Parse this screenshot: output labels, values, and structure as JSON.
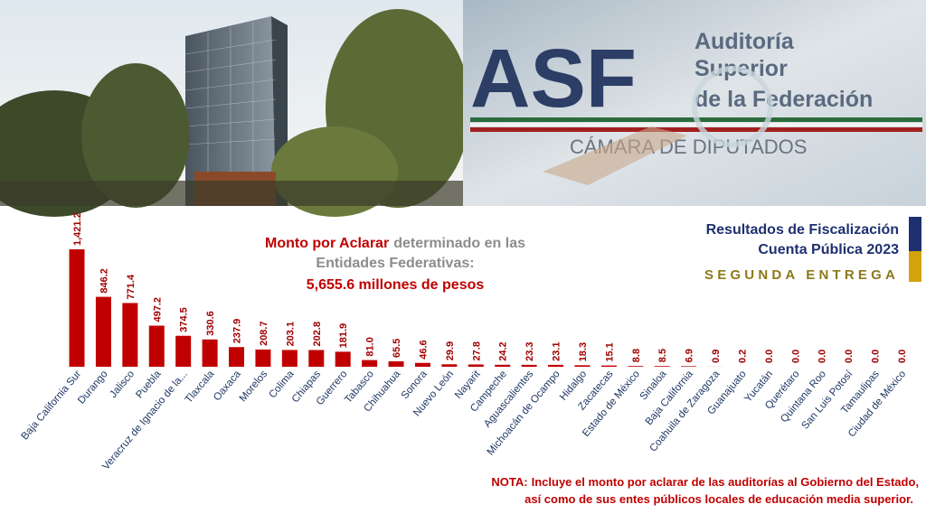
{
  "banner": {
    "logo": "ASF",
    "org_line1": "Auditoría",
    "org_line2": "Superior",
    "org_line3": "de la Federación",
    "chamber": "CÁMARA DE DIPUTADOS"
  },
  "chart_data": {
    "type": "bar",
    "title_part1": "Monto por Aclarar",
    "title_part2": "determinado en las",
    "title_line2": "Entidades Federativas:",
    "total": "5,655.6 millones de pesos",
    "categories": [
      "Baja California Sur",
      "Durango",
      "Jalisco",
      "Puebla",
      "Veracruz de Ignacio de la...",
      "Tlaxcala",
      "Oaxaca",
      "Morelos",
      "Colima",
      "Chiapas",
      "Guerrero",
      "Tabasco",
      "Chihuahua",
      "Sonora",
      "Nuevo León",
      "Nayarit",
      "Campeche",
      "Aguascalientes",
      "Michoacán de Ocampo",
      "Hidalgo",
      "Zacatecas",
      "Estado de México",
      "Sinaloa",
      "Baja California",
      "Coahuila de Zaragoza",
      "Guanajuato",
      "Yucatán",
      "Querétaro",
      "Quintana Roo",
      "San Luis Potosí",
      "Tamaulipas",
      "Ciudad de México"
    ],
    "values": [
      1421.2,
      846.2,
      771.4,
      497.2,
      374.5,
      330.6,
      237.9,
      208.7,
      203.1,
      202.8,
      181.9,
      81.0,
      65.5,
      46.6,
      29.9,
      27.8,
      24.2,
      23.3,
      23.1,
      18.3,
      15.1,
      8.8,
      8.5,
      6.9,
      0.9,
      0.2,
      0.0,
      0.0,
      0.0,
      0.0,
      0.0,
      0.0
    ],
    "value_labels": [
      "1,421.2",
      "846.2",
      "771.4",
      "497.2",
      "374.5",
      "330.6",
      "237.9",
      "208.7",
      "203.1",
      "202.8",
      "181.9",
      "81.0",
      "65.5",
      "46.6",
      "29.9",
      "27.8",
      "24.2",
      "23.3",
      "23.1",
      "18.3",
      "15.1",
      "8.8",
      "8.5",
      "6.9",
      "0.9",
      "0.2",
      "0.0",
      "0.0",
      "0.0",
      "0.0",
      "0.0",
      "0.0"
    ],
    "color": "#c00000"
  },
  "side_box": {
    "line1": "Resultados de Fiscalización",
    "line2": "Cuenta Pública 2023",
    "line3": "SEGUNDA ENTREGA"
  },
  "note": {
    "label": "NOTA:",
    "line1": "Incluye el monto por aclarar de las auditorías al Gobierno del Estado,",
    "line2": "así como de sus entes públicos locales de educación media superior."
  }
}
